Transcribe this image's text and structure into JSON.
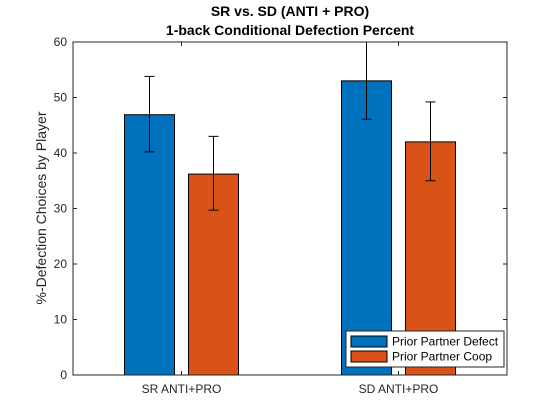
{
  "chart_data": {
    "type": "bar",
    "title": "SR vs. SD (ANTI + PRO)",
    "subtitle": "1-back Conditional Defection Percent",
    "xlabel": "",
    "ylabel": "%-Defection Choices by Player",
    "ylim": [
      0,
      60
    ],
    "yticks": [
      0,
      10,
      20,
      30,
      40,
      50,
      60
    ],
    "categories": [
      "SR ANTI+PRO",
      "SD ANTI+PRO"
    ],
    "series": [
      {
        "name": "Prior Partner Defect",
        "color": "#0072BD",
        "values": [
          46.9,
          53.0
        ],
        "error_low": [
          40.2,
          46.1
        ],
        "error_high": [
          53.8,
          60.0
        ]
      },
      {
        "name": "Prior Partner Coop",
        "color": "#D95319",
        "values": [
          36.2,
          42.0
        ],
        "error_low": [
          29.7,
          35.0
        ],
        "error_high": [
          43.0,
          49.2
        ]
      }
    ],
    "grid": false,
    "legend_position": "bottom-right"
  }
}
